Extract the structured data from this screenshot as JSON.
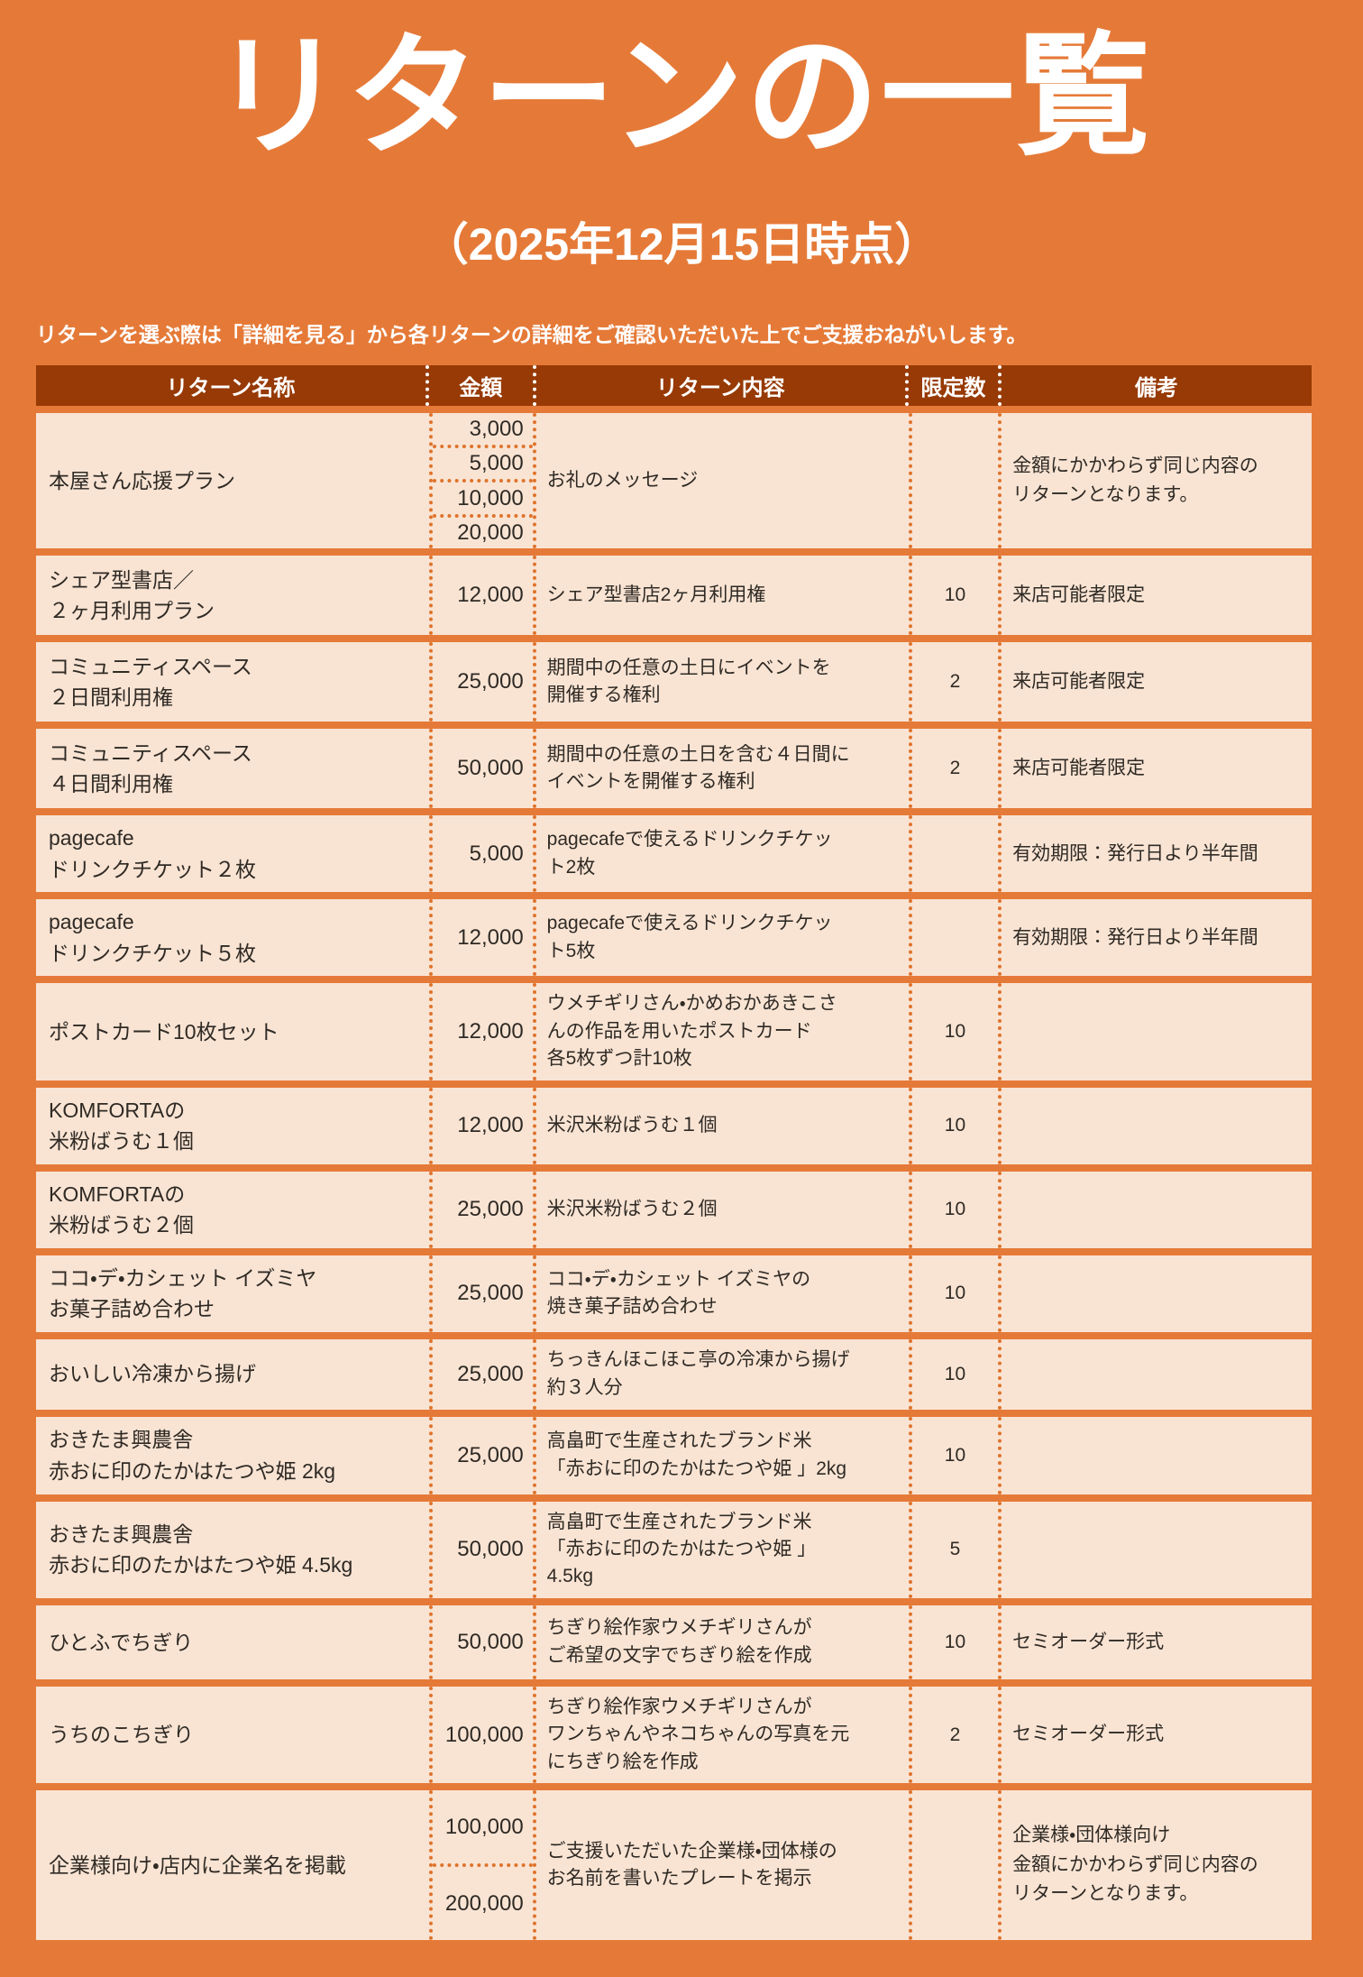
{
  "page": {
    "title": "リターンの一覧",
    "subtitle": "（2025年12月15日時点）",
    "description": "リターンを選ぶ際は「詳細を見る」から各リターンの詳細をご確認いただいた上でご支援おねがいします。"
  },
  "colors": {
    "background": "#E57A38",
    "table_header_bg": "#973A05",
    "row_bg": "#F9E4D4",
    "dotted_border": "#DF732B",
    "text": "#2F2A24",
    "title_text": "#FFFFFF"
  },
  "table": {
    "headers": [
      "リターン名称",
      "金額",
      "リターン内容",
      "限定数",
      "備考"
    ],
    "rows": [
      {
        "name": "本屋さん応援プラン",
        "amounts": [
          "3,000",
          "5,000",
          "10,000",
          "20,000"
        ],
        "content": "お礼のメッセージ",
        "limit": "",
        "note": "金額にかかわらず同じ内容の\nリターンとなります。"
      },
      {
        "name": "シェア型書店／\n２ヶ月利用プラン",
        "amounts": [
          "12,000"
        ],
        "content": "シェア型書店2ヶ月利用権",
        "limit": "10",
        "note": "来店可能者限定"
      },
      {
        "name": "コミュニティスペース\n２日間利用権",
        "amounts": [
          "25,000"
        ],
        "content": "期間中の任意の土日にイベントを\n開催する権利",
        "limit": "2",
        "note": "来店可能者限定"
      },
      {
        "name": "コミュニティスペース\n４日間利用権",
        "amounts": [
          "50,000"
        ],
        "content": "期間中の任意の土日を含む４日間に\nイベントを開催する権利",
        "limit": "2",
        "note": "来店可能者限定"
      },
      {
        "name": "pagecafe\nドリンクチケット２枚",
        "amounts": [
          "5,000"
        ],
        "content": "pagecafeで使えるドリンクチケッ\nト2枚",
        "limit": "",
        "note": "有効期限：発行日より半年間"
      },
      {
        "name": "pagecafe\nドリンクチケット５枚",
        "amounts": [
          "12,000"
        ],
        "content": "pagecafeで使えるドリンクチケッ\nト5枚",
        "limit": "",
        "note": "有効期限：発行日より半年間"
      },
      {
        "name": "ポストカード10枚セット",
        "amounts": [
          "12,000"
        ],
        "content": "ウメチギリさん・かめおかあきこさ\nんの作品を用いたポストカード\n各5枚ずつ計10枚",
        "limit": "10",
        "note": ""
      },
      {
        "name": "KOMFORTAの\n米粉ばうむ１個",
        "amounts": [
          "12,000"
        ],
        "content": "米沢米粉ばうむ１個",
        "limit": "10",
        "note": ""
      },
      {
        "name": "KOMFORTAの\n米粉ばうむ２個",
        "amounts": [
          "25,000"
        ],
        "content": "米沢米粉ばうむ２個",
        "limit": "10",
        "note": ""
      },
      {
        "name": "ココ・デ・カシェット イズミヤ\nお菓子詰め合わせ",
        "amounts": [
          "25,000"
        ],
        "content": "ココ・デ・カシェット イズミヤの\n焼き菓子詰め合わせ",
        "limit": "10",
        "note": ""
      },
      {
        "name": "おいしい冷凍から揚げ",
        "amounts": [
          "25,000"
        ],
        "content": "ちっきんほこほこ亭の冷凍から揚げ\n約３人分",
        "limit": "10",
        "note": ""
      },
      {
        "name": "おきたま興農舎\n赤おに印のたかはたつや姫 2kg",
        "amounts": [
          "25,000"
        ],
        "content": "高畠町で生産されたブランド米\n「赤おに印のたかはたつや姫 」2kg",
        "limit": "10",
        "note": ""
      },
      {
        "name": "おきたま興農舎\n赤おに印のたかはたつや姫 4.5kg",
        "amounts": [
          "50,000"
        ],
        "content": "高畠町で生産されたブランド米\n「赤おに印のたかはたつや姫 」\n4.5kg",
        "limit": "5",
        "note": ""
      },
      {
        "name": "ひとふでちぎり",
        "amounts": [
          "50,000"
        ],
        "content": "ちぎり絵作家ウメチギリさんが\nご希望の文字でちぎり絵を作成",
        "limit": "10",
        "note": "セミオーダー形式"
      },
      {
        "name": "うちのこちぎり",
        "amounts": [
          "100,000"
        ],
        "content": "ちぎり絵作家ウメチギリさんが\nワンちゃんやネコちゃんの写真を元\nにちぎり絵を作成",
        "limit": "2",
        "note": "セミオーダー形式"
      },
      {
        "name": "企業様向け・店内に企業名を掲載",
        "amounts": [
          "100,000",
          "200,000"
        ],
        "content": "ご支援いただいた企業様・団体様の\nお名前を書いたプレートを掲示",
        "limit": "",
        "note": "企業様・団体様向け\n金額にかかわらず同じ内容の\nリターンとなります。"
      }
    ]
  }
}
